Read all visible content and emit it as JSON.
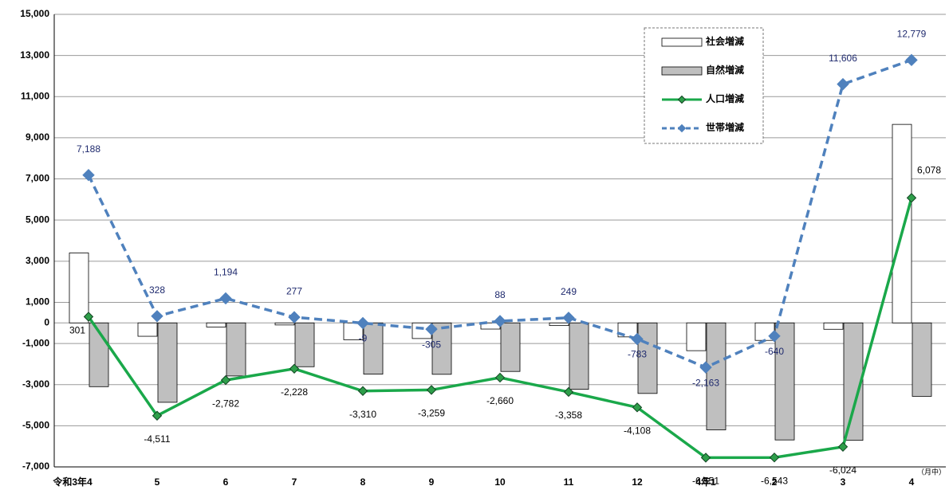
{
  "chart_data": {
    "type": "bar_line",
    "categories": [
      "令和3年4",
      "5",
      "6",
      "7",
      "8",
      "9",
      "10",
      "11",
      "12",
      "4年1",
      "2",
      "3",
      "4"
    ],
    "series": [
      {
        "name": "社会増減",
        "kind": "bar",
        "color": "#ffffff",
        "values": [
          3400,
          -650,
          -200,
          -100,
          -820,
          -760,
          -300,
          -130,
          -680,
          -1350,
          -850,
          -310,
          9650
        ]
      },
      {
        "name": "自然増減",
        "kind": "bar",
        "color": "#bfbfbf",
        "values": [
          -3100,
          -3860,
          -2580,
          -2130,
          -2490,
          -2500,
          -2360,
          -3230,
          -3430,
          -5200,
          -5690,
          -5710,
          -3570
        ]
      },
      {
        "name": "人口増減",
        "kind": "line",
        "color": "#1aa84a",
        "values": [
          301,
          -4511,
          -2782,
          -2228,
          -3310,
          -3259,
          -2660,
          -3358,
          -4108,
          -6551,
          -6543,
          -6024,
          6078
        ],
        "value_labels": [
          "301",
          "-4,511",
          "-2,782",
          "-2,228",
          "-3,310",
          "-3,259",
          "-2,660",
          "-3,358",
          "-4,108",
          "-6,551",
          "-6,543",
          "-6,024",
          "6,078"
        ]
      },
      {
        "name": "世帯増減",
        "kind": "dashed_line",
        "color": "#4f81bd",
        "values": [
          7188,
          328,
          1194,
          277,
          -9,
          -305,
          88,
          249,
          -783,
          -2163,
          -640,
          11606,
          12779
        ],
        "value_labels": [
          "7,188",
          "328",
          "1,194",
          "277",
          "-9",
          "-305",
          "88",
          "249",
          "-783",
          "-2,163",
          "-640",
          "11,606",
          "12,779"
        ]
      }
    ],
    "ylim": [
      -7000,
      15000
    ],
    "yticks": [
      {
        "value": -7000,
        "label": "-7,000"
      },
      {
        "value": -5000,
        "label": "-5,000"
      },
      {
        "value": -3000,
        "label": "-3,000"
      },
      {
        "value": -1000,
        "label": "-1,000"
      },
      0,
      {
        "value": 1000,
        "label": "1,000"
      },
      {
        "value": 3000,
        "label": "3,000"
      },
      {
        "value": 5000,
        "label": "5,000"
      },
      {
        "value": 7000,
        "label": "7,000"
      },
      {
        "value": 9000,
        "label": "9,000"
      },
      {
        "value": 11000,
        "label": "11,000"
      },
      {
        "value": 13000,
        "label": "13,000"
      },
      {
        "value": 15000,
        "label": "15,000"
      }
    ],
    "grid": true,
    "legend": "upper right",
    "annotation": "（月中）"
  }
}
